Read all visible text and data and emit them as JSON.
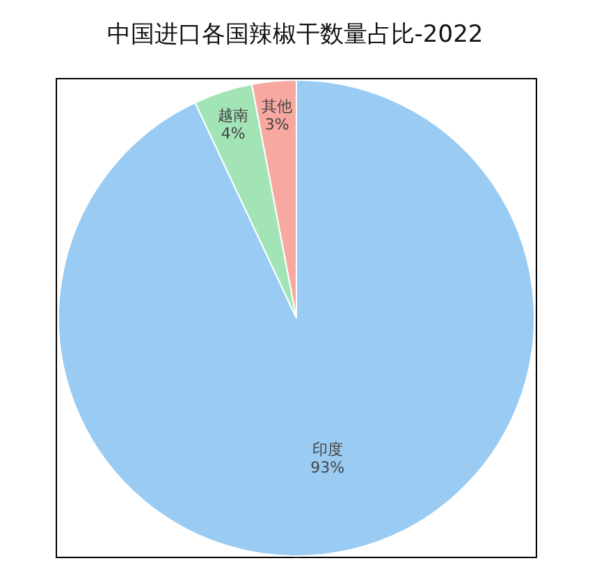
{
  "chart_data": {
    "type": "pie",
    "title": "中国进口各国辣椒干数量占比-2022",
    "categories": [
      "印度",
      "越南",
      "其他"
    ],
    "values": [
      93,
      4,
      3
    ],
    "value_labels": [
      "93%",
      "4%",
      "3%"
    ],
    "colors": [
      "#99cbf3",
      "#a3e4b7",
      "#f7a8a0"
    ]
  }
}
